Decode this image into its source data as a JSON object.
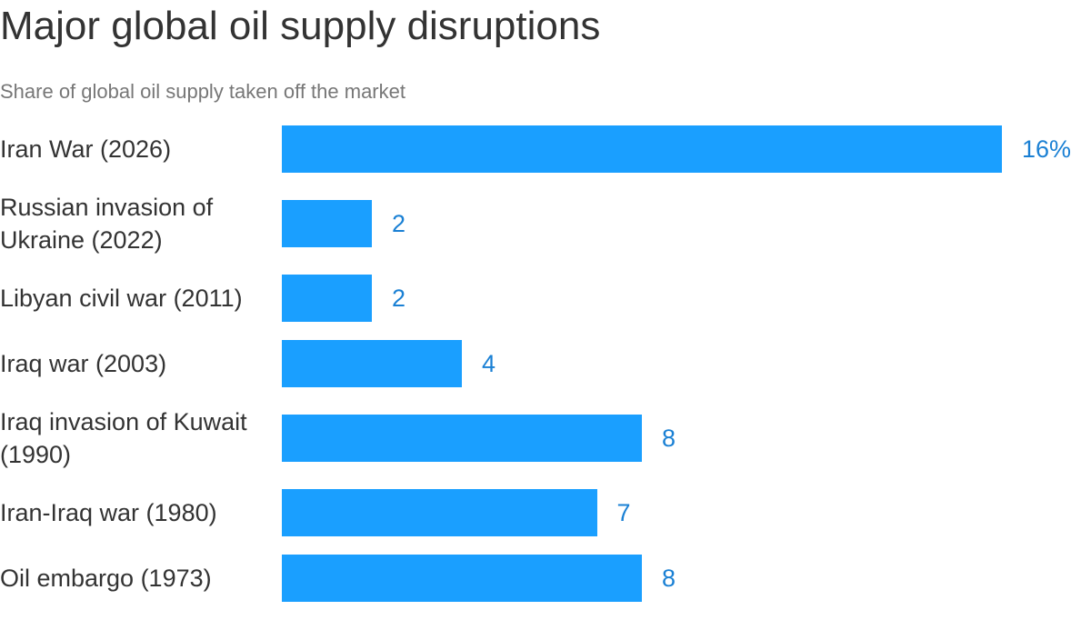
{
  "chart_data": {
    "type": "bar",
    "orientation": "horizontal",
    "title": "Major global oil supply disruptions",
    "subtitle": "Share of global oil supply taken off the market",
    "categories": [
      "Iran War (2026)",
      "Russian invasion of Ukraine (2022)",
      "Libyan civil war (2011)",
      "Iraq war (2003)",
      "Iraq invasion of Kuwait (1990)",
      "Iran-Iraq war (1980)",
      "Oil embargo (1973)"
    ],
    "values": [
      16,
      2,
      2,
      4,
      8,
      7,
      8
    ],
    "value_labels": [
      "16%",
      "2",
      "2",
      "4",
      "8",
      "7",
      "8"
    ],
    "color": "#1a9fff",
    "label_color": "#1a80d4"
  }
}
